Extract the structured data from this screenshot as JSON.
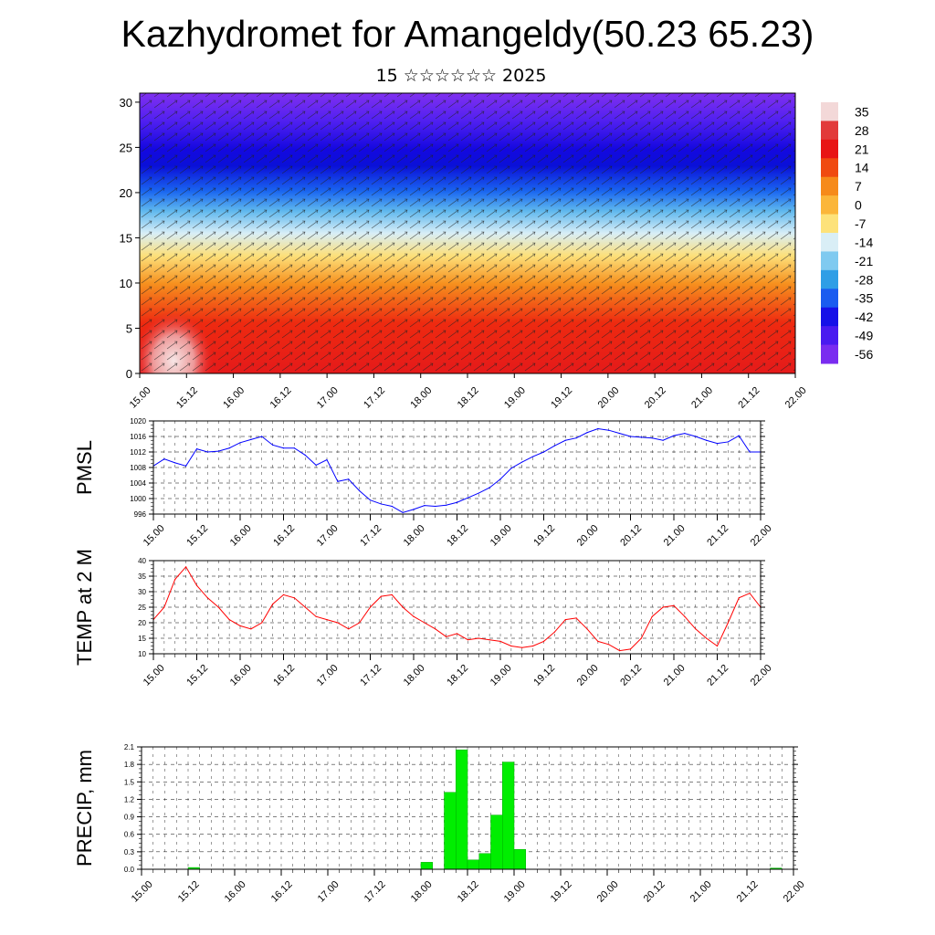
{
  "title": "Kazhydromet for Amangeldy(50.23 65.23)",
  "subtitle": "15 ☆☆☆☆☆☆ 2025",
  "time_labels": [
    "15.00",
    "15.12",
    "16.00",
    "16.12",
    "17.00",
    "17.12",
    "18.00",
    "18.12",
    "19.00",
    "19.12",
    "20.00",
    "20.12",
    "21.00",
    "21.12",
    "22.00"
  ],
  "chart_data": [
    {
      "type": "heatmap",
      "description_source": "temperature / wind cross-section",
      "x_categories": [
        "15.00",
        "15.12",
        "16.00",
        "16.12",
        "17.00",
        "17.12",
        "18.00",
        "18.12",
        "19.00",
        "19.12",
        "20.00",
        "20.12",
        "21.00",
        "21.12",
        "22.00"
      ],
      "y_ticks": [
        0,
        5,
        10,
        15,
        20,
        25,
        30
      ],
      "ylim": [
        0,
        31
      ],
      "color_levels": [
        35,
        28,
        21,
        14,
        7,
        0,
        -7,
        -14,
        -21,
        -28,
        -35,
        -42,
        -49,
        -56
      ],
      "color_scale_colors": [
        "#f3d8d8",
        "#e23a3a",
        "#e81414",
        "#f04a10",
        "#f68a1a",
        "#fbb63a",
        "#fde27a",
        "#d9eef6",
        "#7fcaf0",
        "#2f9ee6",
        "#1a5cf0",
        "#1610e8",
        "#4a1af0",
        "#7a2cf0"
      ],
      "grid": false,
      "legend": "right"
    },
    {
      "type": "line",
      "ylabel": "PMSL",
      "y_ticks": [
        996,
        1000,
        1004,
        1008,
        1012,
        1016,
        1020
      ],
      "ylim": [
        996,
        1020
      ],
      "x_index_range": [
        0,
        56
      ],
      "series": [
        {
          "color": "#0000ff",
          "values": [
            1008.4,
            1010.2,
            1009.2,
            1008.4,
            1012.8,
            1012.0,
            1012.2,
            1013.0,
            1014.4,
            1015.2,
            1016.0,
            1013.8,
            1013.0,
            1013.0,
            1011.2,
            1008.6,
            1010.0,
            1004.4,
            1005.0,
            1002.0,
            999.6,
            998.6,
            998.0,
            996.4,
            997.2,
            998.2,
            998.0,
            998.3,
            999.0,
            1000.2,
            1001.4,
            1002.8,
            1005.0,
            1007.8,
            1009.4,
            1010.8,
            1012.0,
            1013.6,
            1015.0,
            1015.6,
            1017.0,
            1018.0,
            1017.6,
            1016.8,
            1016.0,
            1015.8,
            1015.6,
            1015.0,
            1016.2,
            1016.8,
            1016.0,
            1015.0,
            1014.2,
            1014.6,
            1016.2,
            1012.0,
            1012.0
          ]
        }
      ],
      "grid": true
    },
    {
      "type": "line",
      "ylabel": "TEMP at 2 M",
      "y_ticks": [
        10,
        15,
        20,
        25,
        30,
        35,
        40
      ],
      "ylim": [
        10,
        40
      ],
      "x_index_range": [
        0,
        56
      ],
      "series": [
        {
          "color": "#ff0000",
          "values": [
            21,
            25,
            34,
            38,
            32,
            28,
            25,
            21,
            19,
            18,
            20,
            26,
            29,
            28,
            25,
            22,
            21,
            20,
            18,
            20,
            25,
            28.5,
            29,
            25,
            22,
            20,
            18,
            15.5,
            16.5,
            14.5,
            15,
            14.5,
            14,
            12.5,
            12,
            12.5,
            14,
            17,
            21,
            21.5,
            18,
            14,
            13,
            11,
            11.5,
            15,
            22,
            25,
            25.5,
            22,
            18,
            15,
            12.5,
            20,
            28,
            29.5,
            25
          ]
        }
      ],
      "grid": true
    },
    {
      "type": "bar",
      "ylabel": "PRECIP, mm",
      "y_ticks": [
        0.0,
        0.3,
        0.6,
        0.9,
        1.2,
        1.5,
        1.8,
        2.1
      ],
      "ylim": [
        0,
        2.1
      ],
      "x_index_range": [
        0,
        56
      ],
      "bar_color": "#00ee00",
      "bars": [
        {
          "i": 4,
          "v": 0.03
        },
        {
          "i": 24,
          "v": 0.12
        },
        {
          "i": 26,
          "v": 1.32
        },
        {
          "i": 27,
          "v": 2.05
        },
        {
          "i": 28,
          "v": 0.16
        },
        {
          "i": 29,
          "v": 0.27
        },
        {
          "i": 30,
          "v": 0.93
        },
        {
          "i": 31,
          "v": 1.84
        },
        {
          "i": 32,
          "v": 0.34
        },
        {
          "i": 54,
          "v": 0.02
        }
      ],
      "grid": true
    }
  ]
}
